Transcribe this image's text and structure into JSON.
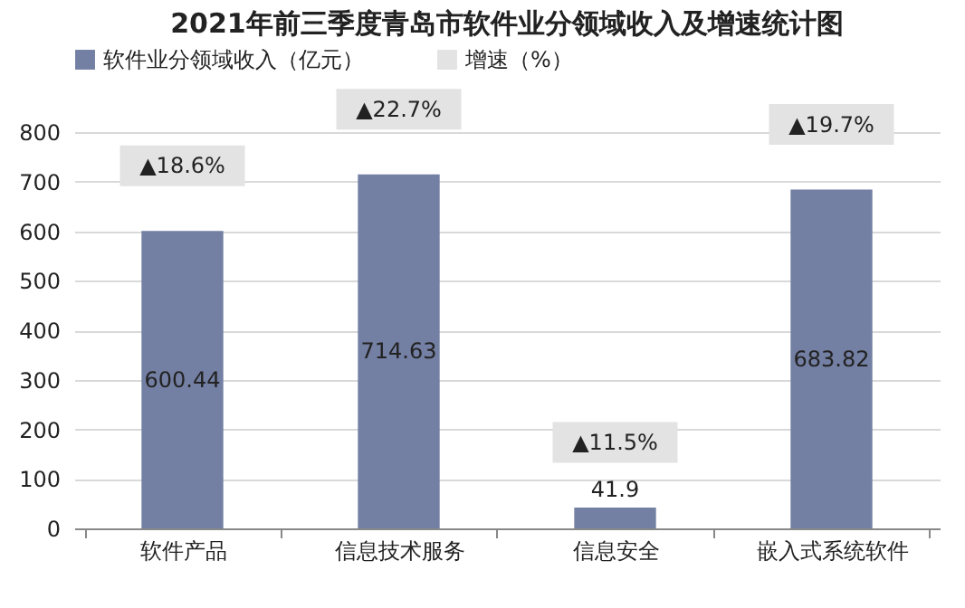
{
  "chart_data": {
    "type": "bar",
    "title": "2021年前三季度青岛市软件业分领域收入及增速统计图",
    "categories": [
      "软件产品",
      "信息技术服务",
      "信息安全",
      "嵌入式系统软件"
    ],
    "series": [
      {
        "name": "软件业分领域收入（亿元）",
        "color": "#737fa3",
        "values": [
          600.44,
          714.63,
          41.9,
          683.82
        ]
      },
      {
        "name": "增速（%）",
        "color": "#e3e3e3",
        "values": [
          null,
          null,
          null,
          null
        ]
      }
    ],
    "ylim": [
      0,
      800
    ],
    "yticks": [
      0,
      100,
      200,
      300,
      400,
      500,
      600,
      700,
      800
    ],
    "grid": "y",
    "legend": "top",
    "data_labels": true,
    "annotations": [
      {
        "text": "▲18.6%",
        "x": "软件产品",
        "y": 600.44
      },
      {
        "text": "▲22.7%",
        "x": "信息技术服务",
        "y": 714.63
      },
      {
        "text": "▲11.5%",
        "x": "信息安全",
        "y": 41.9
      },
      {
        "text": "▲19.7%",
        "x": "嵌入式系统软件",
        "y": 683.82
      }
    ]
  }
}
